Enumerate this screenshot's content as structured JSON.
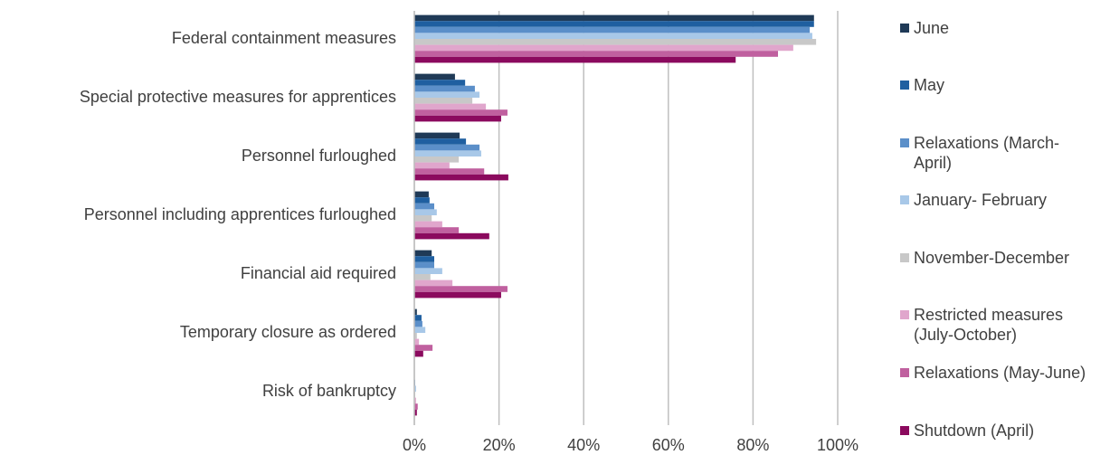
{
  "chart_data": {
    "type": "hbar",
    "categories": [
      "Federal containment measures",
      "Special protective measures for apprentices",
      "Personnel furloughed",
      "Personnel including apprentices furloughed",
      "Financial aid required",
      "Temporary closure as ordered",
      "Risk of bankruptcy"
    ],
    "series": [
      {
        "name": "June",
        "color": "#1f3a57",
        "values": [
          94.4,
          9.6,
          10.7,
          3.4,
          4.1,
          0.6,
          0.1
        ]
      },
      {
        "name": "May",
        "color": "#1f5fa0",
        "values": [
          94.4,
          12,
          12.2,
          3.6,
          4.7,
          1.7,
          0.1
        ]
      },
      {
        "name": "Relaxations (March-April)",
        "color": "#5b8fc9",
        "values": [
          93.4,
          14.3,
          15.4,
          4.7,
          4.7,
          1.9,
          0.2
        ]
      },
      {
        "name": "January- February",
        "color": "#a8c8e8",
        "values": [
          94,
          15.4,
          15.8,
          5.3,
          6.6,
          2.6,
          0.4
        ]
      },
      {
        "name": "November-December",
        "color": "#c8c8c8",
        "values": [
          94.9,
          13.7,
          10.5,
          4.1,
          3.8,
          0.6,
          0.2
        ]
      },
      {
        "name": "Restricted measures (July-October)",
        "color": "#e0a6cc",
        "values": [
          89.5,
          16.9,
          8.3,
          6.6,
          9,
          1.1,
          0.4
        ]
      },
      {
        "name": "Relaxations (May-June)",
        "color": "#c0609f",
        "values": [
          85.9,
          22,
          16.5,
          10.5,
          22,
          4.3,
          0.8
        ]
      },
      {
        "name": "Shutdown (April)",
        "color": "#8b0a5e",
        "values": [
          75.9,
          20.5,
          22.2,
          17.7,
          20.5,
          2.1,
          0.6
        ]
      }
    ],
    "xlim": [
      0,
      100
    ],
    "xticks": [
      {
        "value": 0,
        "label": "0%"
      },
      {
        "value": 20,
        "label": "20%"
      },
      {
        "value": 40,
        "label": "40%"
      },
      {
        "value": 60,
        "label": "60%"
      },
      {
        "value": 80,
        "label": "80%"
      },
      {
        "value": 100,
        "label": "100%"
      }
    ],
    "grid": true
  }
}
